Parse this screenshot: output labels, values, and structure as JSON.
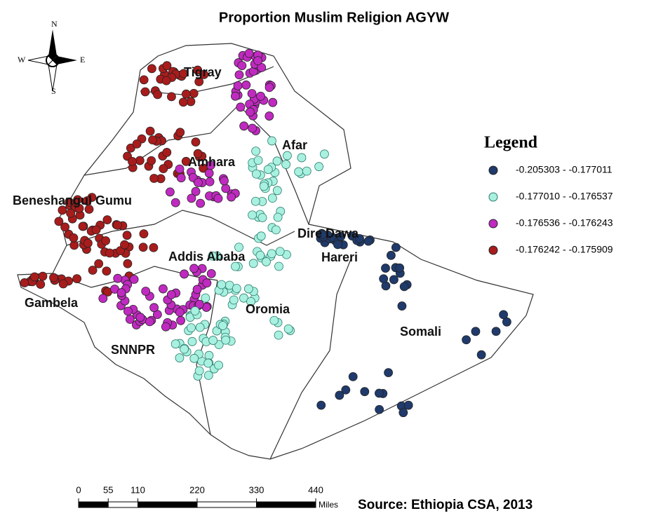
{
  "title": "Proportion Muslim Religion AGYW",
  "compass": {
    "north": "N",
    "south": "S",
    "east": "E",
    "west": "W"
  },
  "legend": {
    "title": "Legend",
    "items": [
      {
        "label": "-0.205303 - -0.177011",
        "color": "#1f3a6b"
      },
      {
        "label": "-0.177010 - -0.176537",
        "color": "#a8f0e0"
      },
      {
        "label": "-0.176536 - -0.176243",
        "color": "#c02ac0"
      },
      {
        "label": "-0.176242 - -0.175909",
        "color": "#a81c1c"
      }
    ]
  },
  "regions": [
    "Tigray",
    "Amhara",
    "Afar",
    "Beneshangul Gumu",
    "Addis Ababa",
    "Dire Dawa",
    "Hareri",
    "Oromia",
    "Gambela",
    "SNNPR",
    "Somali"
  ],
  "scale": {
    "ticks": [
      0,
      55,
      110,
      220,
      330,
      440
    ],
    "unit": "Miles"
  },
  "source": "Source: Ethiopia CSA, 2013"
}
